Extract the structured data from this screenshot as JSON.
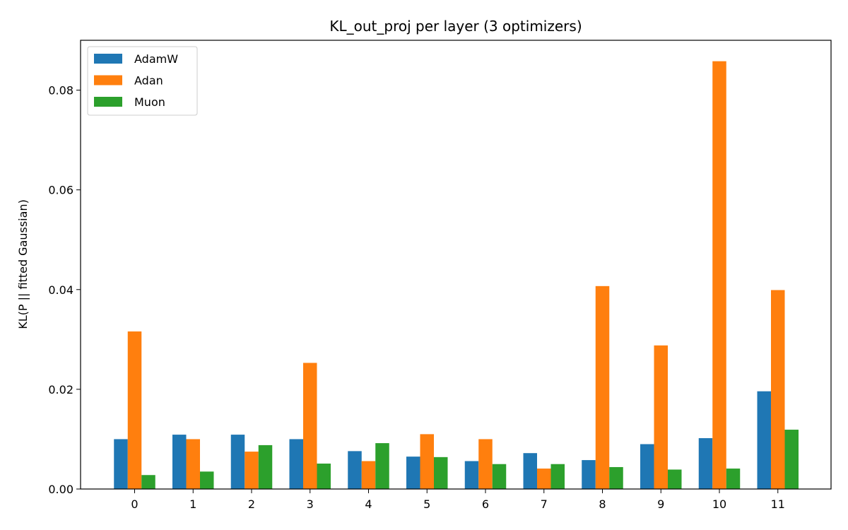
{
  "chart_data": {
    "type": "bar",
    "title": "KL_out_proj per layer (3 optimizers)",
    "xlabel": "",
    "ylabel": "KL(P || fitted Gaussian)",
    "categories": [
      "0",
      "1",
      "2",
      "3",
      "4",
      "5",
      "6",
      "7",
      "8",
      "9",
      "10",
      "11"
    ],
    "ylim": [
      0,
      0.09
    ],
    "yticks": [
      0.0,
      0.02,
      0.04,
      0.06,
      0.08
    ],
    "ytick_labels": [
      "0.00",
      "0.02",
      "0.04",
      "0.06",
      "0.08"
    ],
    "grid": false,
    "legend_position": "top-left",
    "series": [
      {
        "name": "AdamW",
        "color": "#1f77b4",
        "values": [
          0.01,
          0.0109,
          0.0109,
          0.01,
          0.0076,
          0.0065,
          0.0056,
          0.0072,
          0.0058,
          0.009,
          0.0102,
          0.0196
        ]
      },
      {
        "name": "Adan",
        "color": "#ff7f0e",
        "values": [
          0.0316,
          0.01,
          0.0075,
          0.0253,
          0.0056,
          0.011,
          0.01,
          0.0041,
          0.0407,
          0.0288,
          0.0858,
          0.0399
        ]
      },
      {
        "name": "Muon",
        "color": "#2ca02c",
        "values": [
          0.0028,
          0.0035,
          0.0088,
          0.0051,
          0.0092,
          0.0064,
          0.005,
          0.005,
          0.0044,
          0.0039,
          0.0041,
          0.0119
        ]
      }
    ]
  }
}
